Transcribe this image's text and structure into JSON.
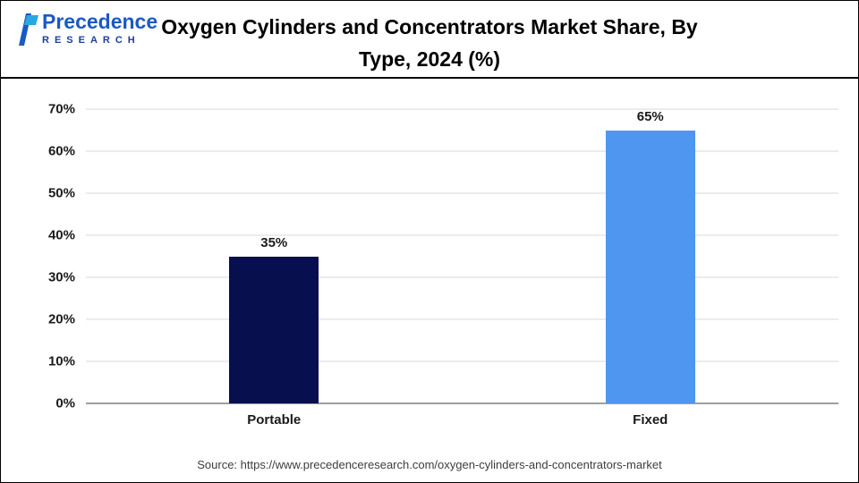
{
  "header": {
    "logo_name": "Precedence",
    "logo_sub": "RESEARCH",
    "title": "Oxygen Cylinders and Concentrators Market Share, By Type, 2024 (%)"
  },
  "chart_data": {
    "type": "bar",
    "title": "Oxygen Cylinders and Concentrators Market Share, By Type, 2024 (%)",
    "categories": [
      "Portable",
      "Fixed"
    ],
    "values": [
      35,
      65
    ],
    "value_labels": [
      "35%",
      "65%"
    ],
    "bar_colors": [
      "#070F4E",
      "#4E96F0"
    ],
    "ylim": [
      0,
      70
    ],
    "yticks": [
      0,
      10,
      20,
      30,
      40,
      50,
      60,
      70
    ],
    "ytick_labels": [
      "0%",
      "10%",
      "20%",
      "30%",
      "40%",
      "50%",
      "60%",
      "70%"
    ],
    "xlabel": "",
    "ylabel": "",
    "grid": "horizontal",
    "legend": "none"
  },
  "footer": {
    "source": "Source: https://www.precedenceresearch.com/oxygen-cylinders-and-concentrators-market"
  },
  "colors": {
    "brand_blue": "#1b59c4",
    "brand_cyan": "#2aa7df",
    "bar_portable": "#070F4E",
    "bar_fixed": "#4E96F0",
    "gridline": "#d9d9d9",
    "baseline": "#9e9e9e"
  }
}
